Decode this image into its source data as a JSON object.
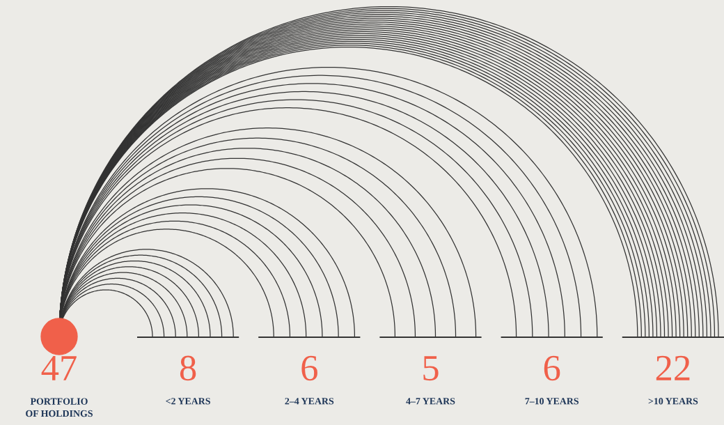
{
  "chart_data": {
    "type": "other",
    "categories": [
      "<2 YEARS",
      "2–4 YEARS",
      "4–7 YEARS",
      "7–10 YEARS",
      ">10 YEARS"
    ],
    "values": [
      8,
      6,
      5,
      6,
      22
    ],
    "color": "#333333",
    "data_labels": true,
    "annotations": [
      "47",
      "PORTFOLIO\nOF HOLDINGS"
    ]
  }
}
